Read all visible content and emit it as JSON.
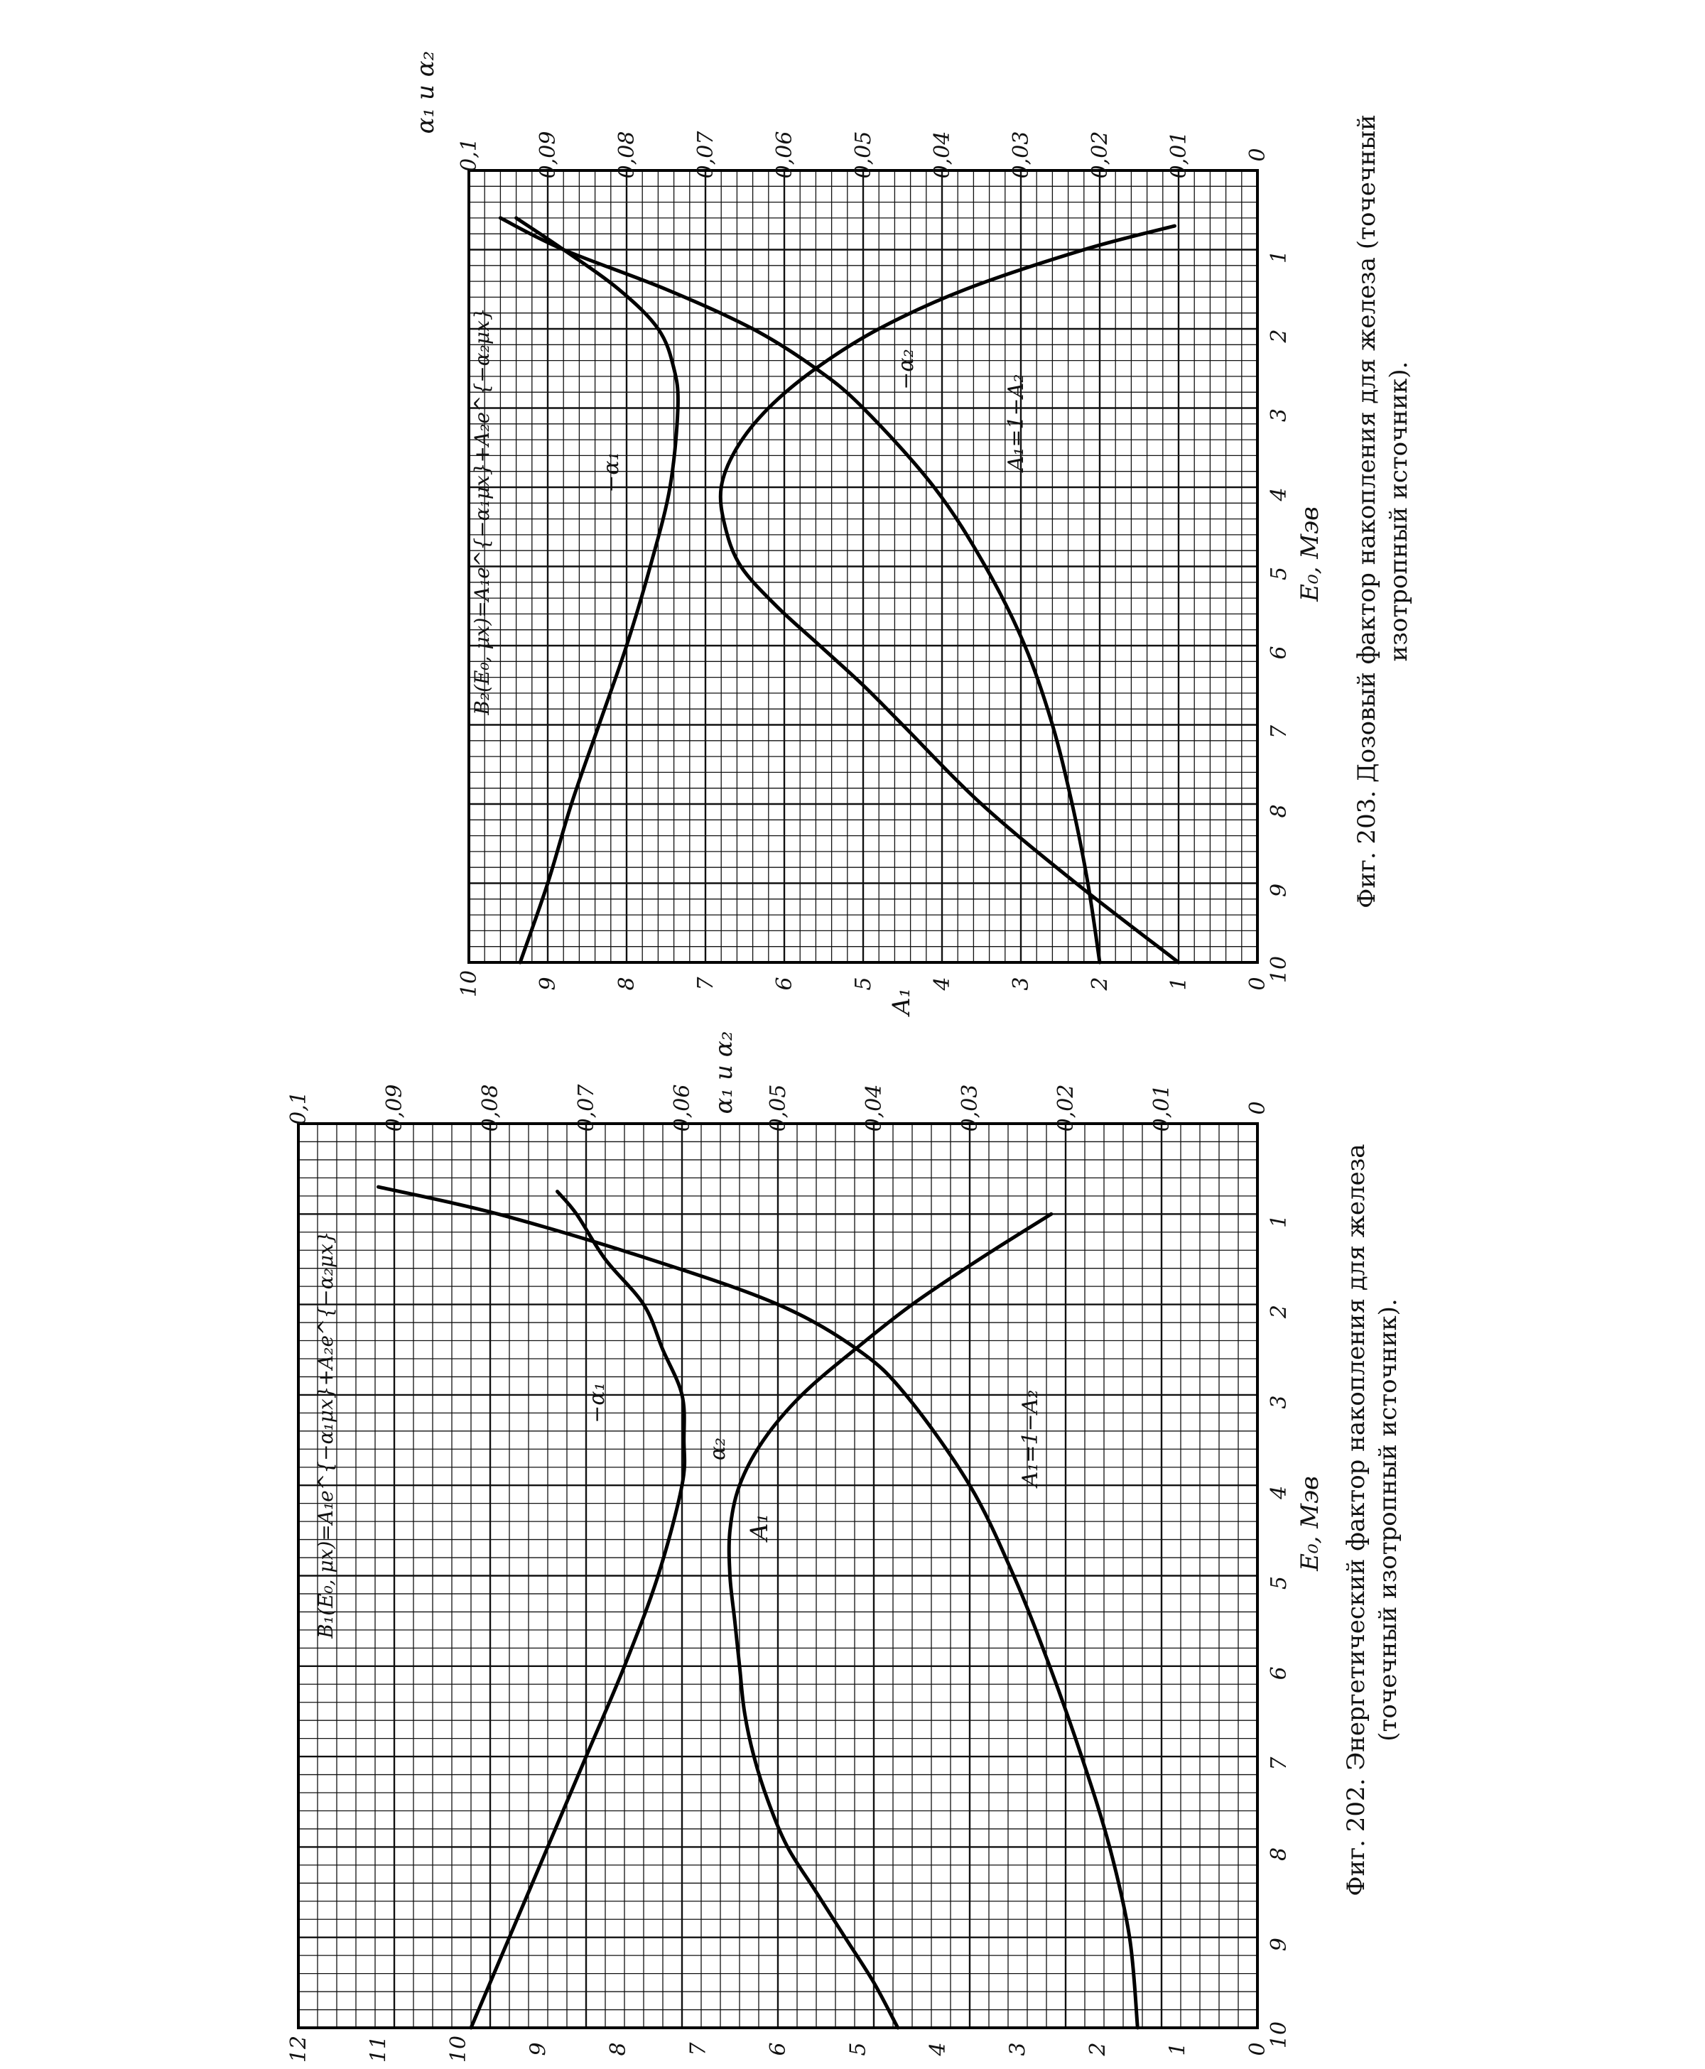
{
  "figures": [
    {
      "caption_line1": "Фиг. 202. Энергетический фактор накопления для железа",
      "caption_line2": "(точечный изотропный источник).",
      "formula": "B₁(E₀, μx)=A₁e^{−α₁μx}+A₂e^{−α₂μx}",
      "left_axis_label": "A₁",
      "right_axis_label": "α₁ и α₂",
      "x_axis_label": "E₀, Мэв",
      "x_ticks": [
        "1",
        "2",
        "3",
        "4",
        "5",
        "6",
        "7",
        "8",
        "9",
        "10"
      ],
      "left_ticks": [
        "0",
        "1",
        "2",
        "3",
        "4",
        "5",
        "6",
        "7",
        "8",
        "9",
        "10",
        "11",
        "12"
      ],
      "right_ticks": [
        "0",
        "0,01",
        "0,02",
        "0,03",
        "0,04",
        "0,05",
        "0,06",
        "0,07",
        "0,08",
        "0,09",
        "0,1"
      ],
      "curve_labels": [
        "−α₁",
        "α₂",
        "A₁=1−A₂"
      ]
    },
    {
      "caption_line1": "Фиг. 203. Дозовый фактор накопления для железа (точечный",
      "caption_line2": "изотропный источник).",
      "formula": "B₂(E₀, μx)=A₁e^{−α₁μx}+A₂e^{−α₂μx}",
      "left_axis_label": "A₁",
      "right_axis_label": "α₁ и α₂",
      "x_axis_label": "E₀, Мэв",
      "x_ticks": [
        "1",
        "2",
        "3",
        "4",
        "5",
        "6",
        "7",
        "8",
        "9",
        "10"
      ],
      "left_ticks": [
        "0",
        "1",
        "2",
        "3",
        "4",
        "5",
        "6",
        "7",
        "8",
        "9",
        "10"
      ],
      "right_ticks": [
        "0",
        "0,01",
        "0,02",
        "0,03",
        "0,04",
        "0,05",
        "0,06",
        "0,07",
        "0,08",
        "0,09",
        "0,1"
      ],
      "curve_labels": [
        "−α₁",
        "−α₂",
        "A₁=1−A₂"
      ]
    }
  ],
  "chart_data": [
    {
      "type": "line",
      "title": "Энергетический фактор накопления для железа (точечный изотропный источник)",
      "xlabel": "E₀, Мэв",
      "ylabel": "A₁",
      "y2label": "α₁ и α₂",
      "xlim": [
        0,
        10
      ],
      "ylim": [
        0,
        12
      ],
      "y2lim": [
        0,
        0.1
      ],
      "grid": true,
      "rotated": "90° counter-clockwise on page",
      "series": [
        {
          "name": "A₁=1−A₂",
          "axis": "left",
          "x": [
            0.7,
            1.0,
            1.5,
            2.0,
            2.5,
            3.0,
            4.0,
            5.0,
            6.0,
            7.0,
            8.0,
            9.0,
            10.0
          ],
          "y": [
            11.0,
            9.5,
            7.6,
            6.0,
            5.0,
            4.4,
            3.6,
            3.05,
            2.6,
            2.2,
            1.85,
            1.6,
            1.5
          ]
        },
        {
          "name": "−α₁",
          "axis": "right",
          "x": [
            0.75,
            1.0,
            1.5,
            2.0,
            2.5,
            3.0,
            3.5,
            4.0,
            5.0,
            6.0,
            7.0,
            8.0,
            9.0,
            10.0
          ],
          "y": [
            0.073,
            0.071,
            0.068,
            0.064,
            0.062,
            0.06,
            0.0598,
            0.06,
            0.0625,
            0.066,
            0.07,
            0.074,
            0.078,
            0.082
          ]
        },
        {
          "name": "α₂",
          "axis": "right",
          "x": [
            1.0,
            1.5,
            2.0,
            2.5,
            3.0,
            3.5,
            4.0,
            4.5,
            5.0,
            5.5,
            6.0,
            6.5,
            7.0,
            7.5,
            8.0,
            8.5,
            9.0,
            9.5,
            10.0
          ],
          "y": [
            0.0215,
            0.029,
            0.036,
            0.042,
            0.0475,
            0.0515,
            0.054,
            0.055,
            0.055,
            0.0545,
            0.054,
            0.0535,
            0.0525,
            0.051,
            0.049,
            0.046,
            0.043,
            0.04,
            0.0375
          ]
        }
      ]
    },
    {
      "type": "line",
      "title": "Дозовый фактор накопления для железа (точечный изотропный источник)",
      "xlabel": "E₀, Мэв",
      "ylabel": "A₁",
      "y2label": "α₁ и α₂",
      "xlim": [
        0,
        10
      ],
      "ylim": [
        0,
        10
      ],
      "y2lim": [
        0,
        0.1
      ],
      "grid": true,
      "rotated": "90° counter-clockwise on page",
      "series": [
        {
          "name": "A₁=1−A₂",
          "axis": "left",
          "x": [
            0.6,
            1.0,
            1.5,
            2.0,
            2.5,
            3.0,
            4.0,
            5.0,
            6.0,
            7.0,
            8.0,
            9.0,
            10.0
          ],
          "y": [
            9.6,
            8.8,
            7.5,
            6.4,
            5.6,
            5.0,
            4.1,
            3.45,
            2.95,
            2.6,
            2.35,
            2.15,
            2.0
          ]
        },
        {
          "name": "−α₁",
          "axis": "right",
          "x": [
            0.6,
            1.0,
            1.5,
            2.0,
            2.5,
            3.0,
            4.0,
            5.0,
            6.0,
            7.0,
            8.0,
            9.0,
            10.0
          ],
          "y": [
            0.094,
            0.088,
            0.081,
            0.076,
            0.074,
            0.0735,
            0.0745,
            0.077,
            0.08,
            0.0835,
            0.087,
            0.09,
            0.0935
          ]
        },
        {
          "name": "−α₂",
          "axis": "right",
          "x": [
            0.7,
            1.0,
            1.5,
            2.0,
            2.5,
            3.0,
            3.5,
            4.0,
            4.5,
            5.0,
            5.5,
            6.0,
            6.5,
            7.0,
            8.0,
            9.0,
            10.0
          ],
          "y": [
            0.0105,
            0.022,
            0.037,
            0.048,
            0.056,
            0.062,
            0.066,
            0.068,
            0.0675,
            0.0655,
            0.061,
            0.0555,
            0.05,
            0.045,
            0.035,
            0.023,
            0.01
          ]
        }
      ]
    }
  ]
}
